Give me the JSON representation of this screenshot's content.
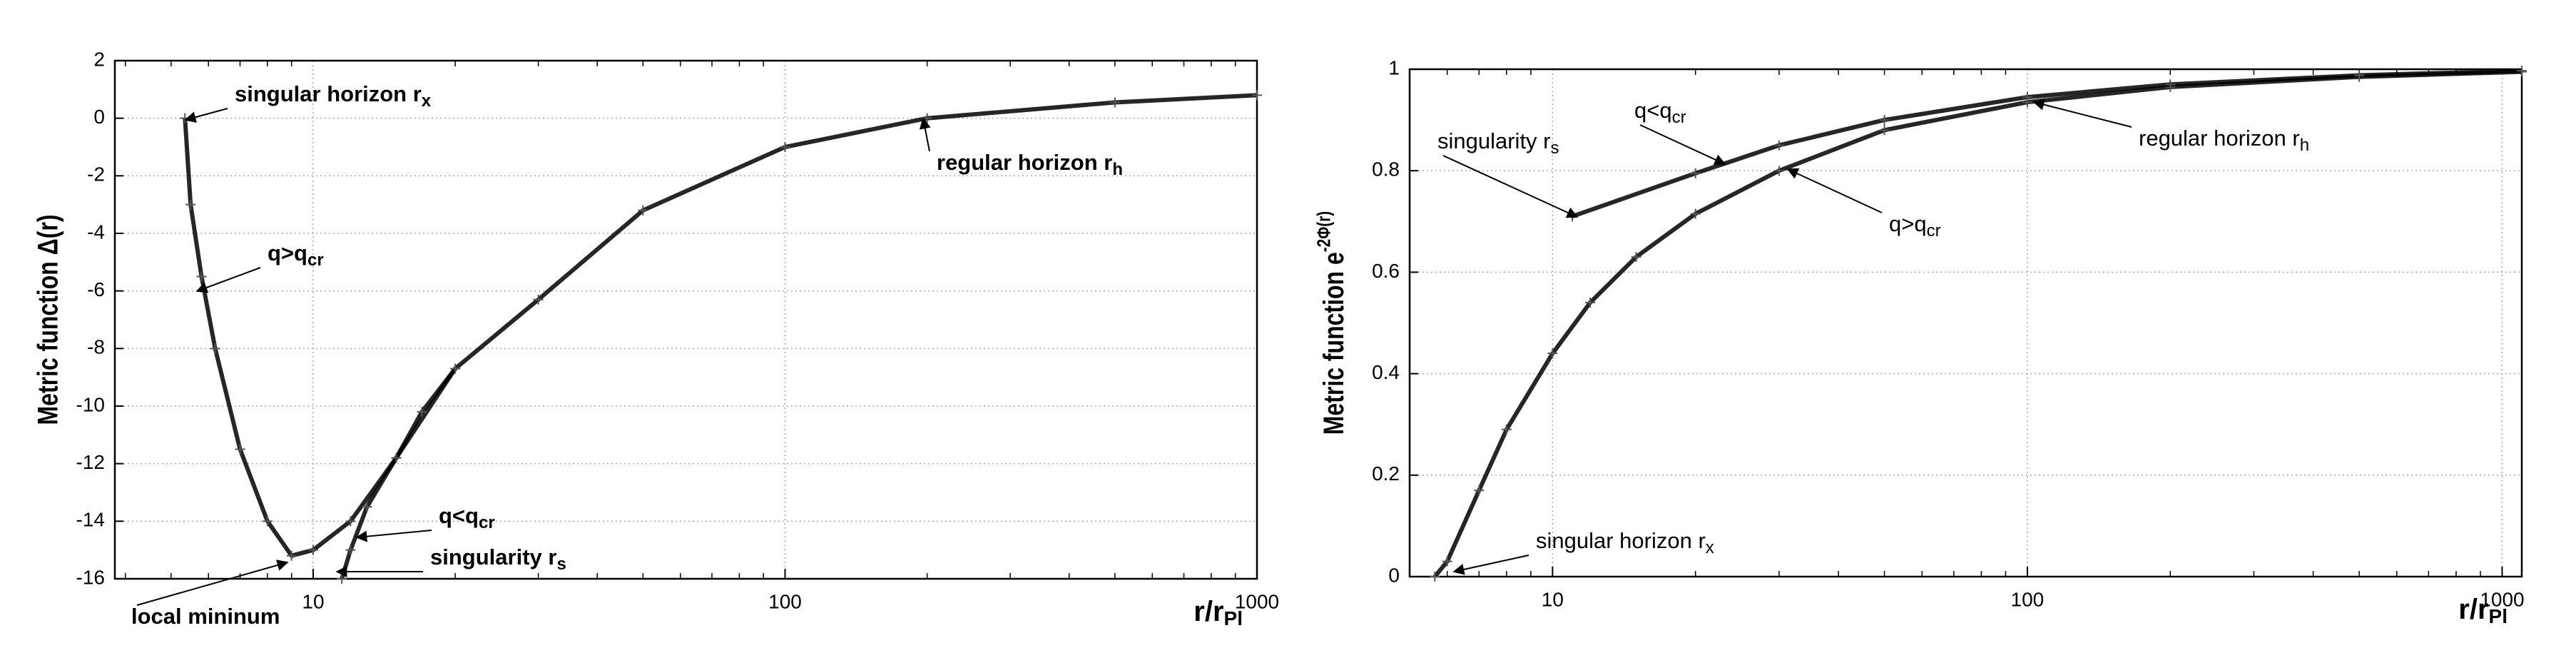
{
  "chart_data": [
    {
      "type": "line",
      "log_x": true,
      "grid": true,
      "ylabel": "Metric function Δ(r)",
      "xlabel": {
        "text": "r/r",
        "sub": "Pl"
      },
      "xlim": [
        3.8,
        1000
      ],
      "xticks": [
        10,
        100,
        1000
      ],
      "ylim": [
        -16,
        2
      ],
      "yticks": [
        2,
        0,
        -2,
        -4,
        -6,
        -8,
        -10,
        -12,
        -14,
        -16
      ],
      "series": [
        {
          "name": "q>q_cr",
          "color": "#000000",
          "x": [
            5.35,
            5.5,
            5.8,
            6.2,
            7,
            8,
            9,
            10,
            12,
            15,
            20,
            30,
            50,
            100,
            200,
            500,
            1000
          ],
          "values": [
            0,
            -3,
            -5.5,
            -8,
            -11.5,
            -14,
            -15.2,
            -15,
            -14,
            -11.8,
            -8.7,
            -6.3,
            -3.2,
            -1,
            0,
            0.55,
            0.8
          ]
        },
        {
          "name": "q<q_cr",
          "color": "#000000",
          "x": [
            11.5,
            12,
            13,
            15,
            17,
            20
          ],
          "values": [
            -16,
            -15,
            -13.5,
            -11.8,
            -10.2,
            -8.7
          ]
        }
      ],
      "annotations": [
        {
          "text": "singular horizon r",
          "sub": "x"
        },
        {
          "text": "q>q",
          "sub": "cr"
        },
        {
          "text": "regular horizon r",
          "sub": "h"
        },
        {
          "text": "q<q",
          "sub": "cr"
        },
        {
          "text": "singularity r",
          "sub": "s"
        },
        {
          "text": "local mininum"
        }
      ]
    },
    {
      "type": "line",
      "log_x": true,
      "grid": true,
      "ylabel": {
        "text": "Metric function e",
        "sup": "-2Φ(r)"
      },
      "xlabel": {
        "text": "r/r",
        "sub": "Pl"
      },
      "xlim": [
        5,
        1100
      ],
      "xticks": [
        10,
        100,
        1000
      ],
      "ylim": [
        0,
        1
      ],
      "yticks": [
        0,
        0.2,
        0.4,
        0.6,
        0.8,
        1
      ],
      "series": [
        {
          "name": "q>q_cr",
          "color": "#000000",
          "x": [
            5.65,
            6,
            7,
            8,
            10,
            12,
            15,
            20,
            30,
            50,
            100,
            200,
            500,
            1100
          ],
          "values": [
            0,
            0.03,
            0.17,
            0.29,
            0.44,
            0.54,
            0.63,
            0.715,
            0.8,
            0.88,
            0.935,
            0.965,
            0.985,
            0.995
          ]
        },
        {
          "name": "q<q_cr",
          "color": "#000000",
          "x": [
            11,
            20,
            30,
            50,
            100,
            200,
            500,
            1100
          ],
          "values": [
            0.71,
            0.795,
            0.85,
            0.9,
            0.945,
            0.97,
            0.988,
            0.997
          ]
        }
      ],
      "annotations": [
        {
          "text": "singularity r",
          "sub": "s"
        },
        {
          "text": "q<q",
          "sub": "cr"
        },
        {
          "text": "regular horizon r",
          "sub": "h"
        },
        {
          "text": "q>q",
          "sub": "cr"
        },
        {
          "text": "singular horizon r",
          "sub": "x"
        }
      ]
    }
  ]
}
